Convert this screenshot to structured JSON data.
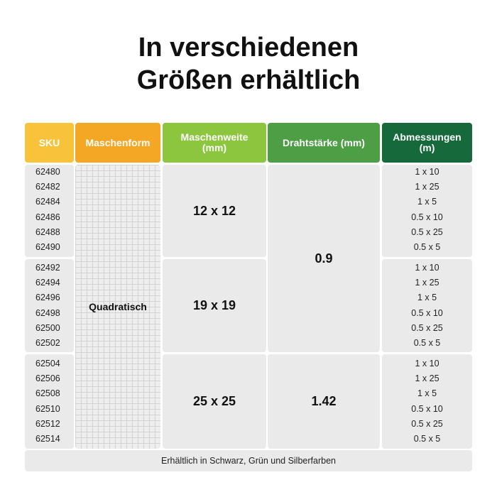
{
  "title": {
    "line1": "In verschiedenen",
    "line2": "Größen erhältlich"
  },
  "colors": {
    "sku": "#f8c33a",
    "maschenform": "#f4a724",
    "maschenweite": "#8cc63f",
    "drahtstaerke": "#4e9e46",
    "abmessungen": "#15693a",
    "cell_bg": "#eaeaea"
  },
  "headers": {
    "sku": "SKU",
    "maschenform": "Maschenform",
    "maschenweite_1": "Maschenweite",
    "maschenweite_2": "(mm)",
    "drahtstaerke": "Drahtstärke (mm)",
    "abmessungen_1": "Abmessungen",
    "abmessungen_2": "(m)"
  },
  "maschenform_value": "Quadratisch",
  "groups": [
    {
      "maschenweite": "12 x 12",
      "skus": [
        "62480",
        "62482",
        "62484",
        "62486",
        "62488",
        "62490"
      ],
      "abmessungen": [
        "1 x 10",
        "1 x 25",
        "1 x 5",
        "0.5 x 10",
        "0.5 x 25",
        "0.5 x 5"
      ]
    },
    {
      "maschenweite": "19 x 19",
      "skus": [
        "62492",
        "62494",
        "62496",
        "62498",
        "62500",
        "62502"
      ],
      "abmessungen": [
        "1 x 10",
        "1 x 25",
        "1 x 5",
        "0.5 x 10",
        "0.5 x 25",
        "0.5 x 5"
      ]
    },
    {
      "maschenweite": "25 x 25",
      "skus": [
        "62504",
        "62506",
        "62508",
        "62510",
        "62512",
        "62514"
      ],
      "abmessungen": [
        "1 x 10",
        "1 x 25",
        "1 x 5",
        "0.5 x 10",
        "0.5 x 25",
        "0.5 x 5"
      ]
    }
  ],
  "drahtstaerke_values": [
    "0.9",
    "1.42"
  ],
  "footer": "Erhältlich in Schwarz, Grün und Silberfarben"
}
